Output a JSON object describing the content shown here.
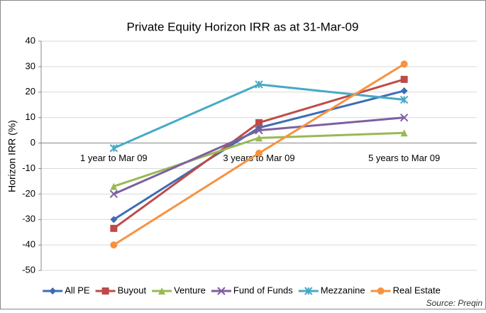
{
  "chart_data": {
    "type": "line",
    "title": "Private Equity Horizon IRR as at 31-Mar-09",
    "y_label": "Horizon IRR (%)",
    "source": "Source: Preqin",
    "categories": [
      "1 year to Mar 09",
      "3 years to Mar 09",
      "5 years to Mar 09"
    ],
    "series": [
      {
        "name": "All PE",
        "color": "#3d6db5",
        "marker": "diamond",
        "values": [
          -30,
          6,
          20.5
        ]
      },
      {
        "name": "Buyout",
        "color": "#be4b48",
        "marker": "square",
        "values": [
          -33.5,
          8,
          25
        ]
      },
      {
        "name": "Venture",
        "color": "#98b954",
        "marker": "triangle",
        "values": [
          -17,
          2,
          4
        ]
      },
      {
        "name": "Fund of Funds",
        "color": "#7d5fa0",
        "marker": "x",
        "values": [
          -20,
          5,
          10
        ]
      },
      {
        "name": "Mezzanine",
        "color": "#46aac5",
        "marker": "star",
        "values": [
          -2,
          23,
          17
        ]
      },
      {
        "name": "Real Estate",
        "color": "#f69240",
        "marker": "circle",
        "values": [
          -40,
          -4,
          31
        ]
      }
    ],
    "ylim": [
      -50,
      40
    ],
    "yticks": [
      -50,
      -40,
      -30,
      -20,
      -10,
      0,
      10,
      20,
      30,
      40
    ],
    "grid": true,
    "legend": "bottom"
  }
}
